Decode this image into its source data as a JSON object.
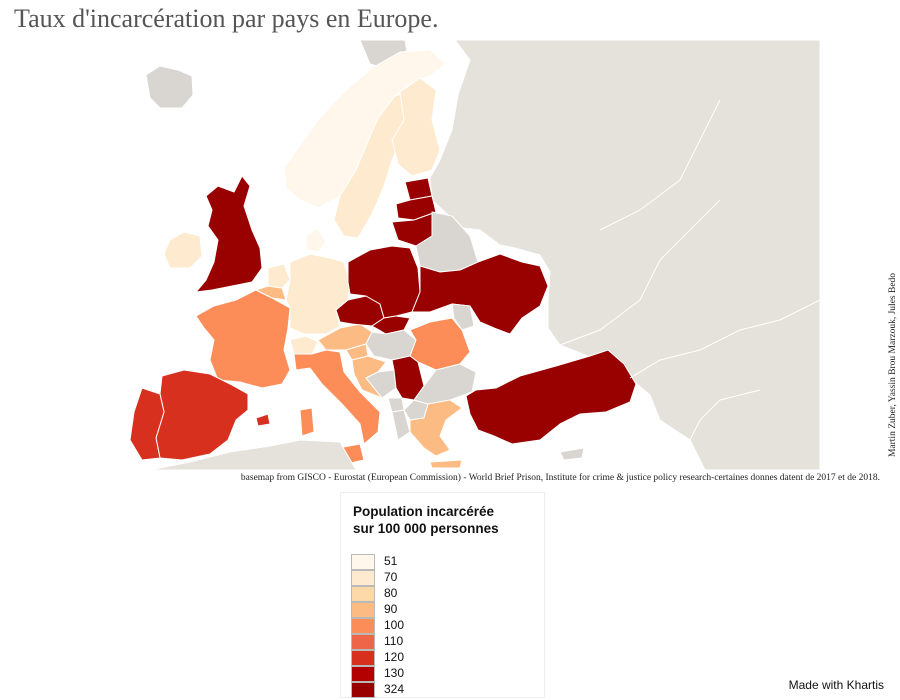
{
  "title": "Taux d'incarcération par pays en Europe.",
  "authors": "Martin Zuber, Yassin Brou Marzouk, Jules Bedo",
  "source": "basemap from GISCO - Eurostat (European Commission) - World Brief Prison, Institute for crime & justice policy research-certaines donnes datent de 2017 et de 2018.",
  "legend": {
    "title_line1": "Population incarcérée",
    "title_line2": "sur 100 000 personnes",
    "classes": [
      {
        "label": "51",
        "color": "#fff7ec"
      },
      {
        "label": "70",
        "color": "#feeacf"
      },
      {
        "label": "80",
        "color": "#fdd8a8"
      },
      {
        "label": "90",
        "color": "#fdbb84"
      },
      {
        "label": "100",
        "color": "#fc8d59"
      },
      {
        "label": "110",
        "color": "#ef6548"
      },
      {
        "label": "120",
        "color": "#d7301f"
      },
      {
        "label": "130",
        "color": "#b30000"
      },
      {
        "label": "324",
        "color": "#990000"
      }
    ]
  },
  "colors": {
    "no_data": "#d9d5d0",
    "outside": "#e5e2dc",
    "sea": "#ffffff"
  },
  "footer": "Made with Khartis"
}
